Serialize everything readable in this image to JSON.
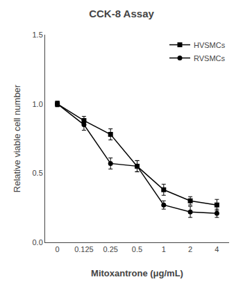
{
  "chart_data": {
    "type": "line",
    "title": "CCK-8 Assay",
    "xlabel": "Mitoxantrone (μg/mL)",
    "ylabel": "Relative viable cell number",
    "categories": [
      "0",
      "0.125",
      "0.25",
      "0.5",
      "1",
      "2",
      "4"
    ],
    "series": [
      {
        "name": "HVSMCs",
        "color": "#000000",
        "marker": "square",
        "line_style": "solid",
        "values": [
          1.0,
          0.88,
          0.78,
          0.55,
          0.38,
          0.3,
          0.27
        ],
        "error": [
          0.02,
          0.03,
          0.04,
          0.04,
          0.04,
          0.03,
          0.04
        ]
      },
      {
        "name": "RVSMCs",
        "color": "#000000",
        "marker": "circle",
        "line_style": "solid",
        "values": [
          1.0,
          0.85,
          0.57,
          0.55,
          0.27,
          0.22,
          0.21
        ],
        "error": [
          0.02,
          0.04,
          0.04,
          0.04,
          0.03,
          0.04,
          0.03
        ]
      }
    ],
    "ylim": [
      0.0,
      1.5
    ],
    "yticks": [
      {
        "value": 0,
        "label": "0.0"
      },
      0.5,
      {
        "value": 1,
        "label": "1.0"
      },
      {
        "value": 1.5,
        "label": "1.5"
      }
    ],
    "grid": false,
    "legend": "upper right"
  }
}
